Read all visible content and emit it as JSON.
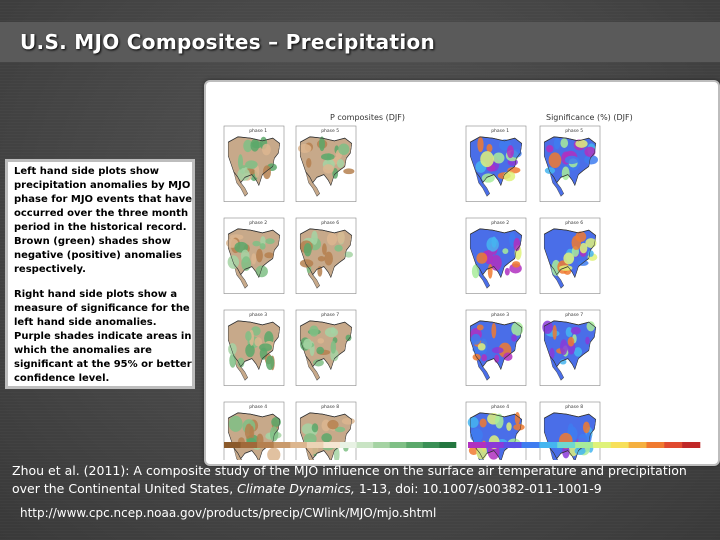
{
  "slide": {
    "title": "U.S. MJO Composites – Precipitation"
  },
  "sidebar": {
    "left_text": "Left hand side plots show precipitation anomalies by MJO phase for MJO events that have occurred over the three month period in the historical record. Brown (green) shades show negative (positive) anomalies respectively.",
    "right_text": "Right hand side plots show a measure of significance for the left hand side anomalies. Purple shades indicate areas in which the anomalies are significant at the 95% or better confidence level."
  },
  "figure": {
    "left_title": "P composites (DJF)",
    "right_title": "Significance (%) (DJF)",
    "left_maps": [
      {
        "label": "phase 1"
      },
      {
        "label": "phase 5"
      },
      {
        "label": "phase 2"
      },
      {
        "label": "phase 6"
      },
      {
        "label": "phase 3"
      },
      {
        "label": "phase 7"
      },
      {
        "label": "phase 4"
      },
      {
        "label": "phase 8"
      }
    ],
    "right_maps": [
      {
        "label": "phase 1"
      },
      {
        "label": "phase 5"
      },
      {
        "label": "phase 2"
      },
      {
        "label": "phase 6"
      },
      {
        "label": "phase 3"
      },
      {
        "label": "phase 7"
      },
      {
        "label": "phase 4"
      },
      {
        "label": "phase 8"
      }
    ],
    "anomaly_colorbar": {
      "colors": [
        "#8b5a2b",
        "#a0693a",
        "#b5804f",
        "#c99a6c",
        "#dcb68f",
        "#ecd3b5",
        "#f5e6d3",
        "#e8f2e4",
        "#c9e4c4",
        "#a5d3a3",
        "#7fbf85",
        "#5aa86a",
        "#3a8f55",
        "#23763f"
      ]
    },
    "significance_colorbar": {
      "colors": [
        "#b030c0",
        "#8a3ad8",
        "#5a50e8",
        "#3e7cf0",
        "#45b5f0",
        "#6fd8d0",
        "#a8ec9a",
        "#dff27a",
        "#f7e05a",
        "#f5b040",
        "#f07a30",
        "#e04a30",
        "#c02828"
      ]
    }
  },
  "citation": {
    "authors": "Zhou et al. (2011): A composite study of the MJO influence on the surface air temperature and precipitation over the Continental United States,",
    "journal": "Climate Dynamics,",
    "details": "1-13, doi: 10.1007/s00382-011-1001-9",
    "url": "http://www.cpc.ncep.noaa.gov/products/precip/CWlink/MJO/mjo.shtml"
  }
}
